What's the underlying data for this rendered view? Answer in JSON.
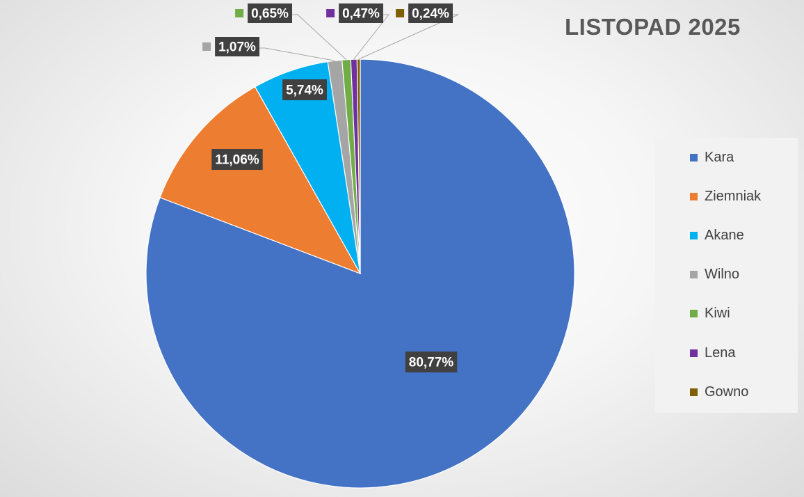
{
  "chart_data": {
    "type": "pie",
    "title": "LISTOPAD 2025",
    "start_angle_deg": 0,
    "direction": "clockwise",
    "legend_position": "right",
    "slices": [
      {
        "name": "Kara",
        "value": 80.77,
        "label": "80,77%",
        "color": "#4472C4"
      },
      {
        "name": "Ziemniak",
        "value": 11.06,
        "label": "11,06%",
        "color": "#ED7D31"
      },
      {
        "name": "Akane",
        "value": 5.74,
        "label": "5,74%",
        "color": "#00B0F0"
      },
      {
        "name": "Wilno",
        "value": 1.07,
        "label": "1,07%",
        "color": "#A5A5A5"
      },
      {
        "name": "Kiwi",
        "value": 0.65,
        "label": "0,65%",
        "color": "#70AD47"
      },
      {
        "name": "Lena",
        "value": 0.47,
        "label": "0,47%",
        "color": "#7030A0"
      },
      {
        "name": "Gowno",
        "value": 0.24,
        "label": "0,24%",
        "color": "#7F6000"
      }
    ]
  }
}
